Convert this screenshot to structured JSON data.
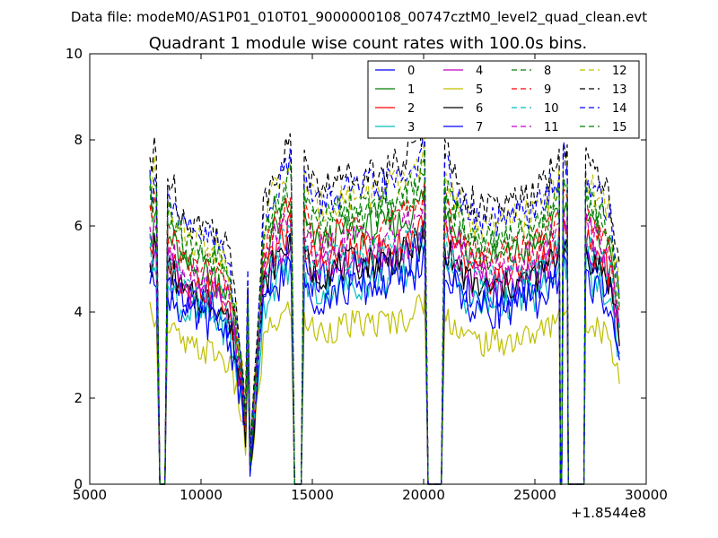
{
  "chart_data": {
    "type": "line",
    "suptitle": "Data file: modeM0/AS1P01_010T01_9000000108_00747cztM0_level2_quad_clean.evt",
    "title": "Quadrant 1 module wise count rates with 100.0s bins.",
    "xlabel": "",
    "ylabel": "",
    "x_offset_label": "+1.8544e8",
    "xlim": [
      5000,
      30000
    ],
    "ylim": [
      0,
      10
    ],
    "xticks": [
      5000,
      10000,
      15000,
      20000,
      25000,
      30000
    ],
    "yticks": [
      0,
      2,
      4,
      6,
      8,
      10
    ],
    "grid": false,
    "legend_position": "top-right",
    "legend_columns": 4,
    "x_sampling": {
      "start": 7700,
      "end": 28850,
      "step": 100
    },
    "data_segments": [
      [
        7700,
        7990
      ],
      [
        8500,
        14050
      ],
      [
        14640,
        20040
      ],
      [
        20950,
        26090
      ],
      [
        26270,
        26450
      ],
      [
        27280,
        28850
      ]
    ],
    "gap_ramps": [
      [
        7990,
        8150,
        8380,
        8500
      ],
      [
        14050,
        14200,
        14500,
        14640
      ],
      [
        20040,
        20200,
        20800,
        20950
      ],
      [
        26090,
        26150,
        26200,
        26270
      ],
      [
        26450,
        26500,
        27200,
        27280
      ]
    ],
    "profile": {
      "x": [
        7700,
        7800,
        7900,
        7990,
        8500,
        8800,
        9200,
        9600,
        10000,
        10400,
        10800,
        11200,
        11500,
        11800,
        12000,
        12100,
        12200,
        12400,
        12800,
        13200,
        13600,
        14000,
        14050,
        14640,
        14800,
        15200,
        16000,
        17000,
        18000,
        19000,
        19500,
        20000,
        20040,
        20950,
        21200,
        21600,
        22000,
        22800,
        23600,
        24400,
        25200,
        26000,
        26090,
        26270,
        26450,
        27280,
        27600,
        28000,
        28400,
        28850
      ],
      "shape": [
        1.0,
        0.95,
        1.02,
        1.0,
        0.93,
        0.9,
        0.82,
        0.8,
        0.8,
        0.79,
        0.77,
        0.72,
        0.6,
        0.42,
        0.22,
        0.65,
        0.1,
        0.3,
        0.84,
        0.94,
        0.99,
        1.04,
        1.02,
        1.0,
        0.95,
        0.9,
        0.93,
        0.95,
        0.96,
        0.98,
        1.02,
        1.08,
        1.12,
        1.03,
        0.98,
        0.93,
        0.87,
        0.84,
        0.85,
        0.87,
        0.9,
        0.98,
        1.02,
        1.05,
        1.03,
        1.0,
        0.96,
        0.92,
        0.86,
        0.6
      ]
    },
    "series": [
      {
        "name": "0",
        "color": "#0000ff",
        "dash": "solid",
        "level": 5.2,
        "jitter": 0.45
      },
      {
        "name": "1",
        "color": "#008000",
        "dash": "solid",
        "level": 6.2,
        "jitter": 0.4
      },
      {
        "name": "2",
        "color": "#ff0000",
        "dash": "solid",
        "level": 5.7,
        "jitter": 0.4
      },
      {
        "name": "3",
        "color": "#00bfbf",
        "dash": "solid",
        "level": 4.9,
        "jitter": 0.42
      },
      {
        "name": "4",
        "color": "#bf00bf",
        "dash": "solid",
        "level": 5.5,
        "jitter": 0.4
      },
      {
        "name": "5",
        "color": "#bfbf00",
        "dash": "solid",
        "level": 3.9,
        "jitter": 0.35
      },
      {
        "name": "6",
        "color": "#000000",
        "dash": "solid",
        "level": 5.4,
        "jitter": 0.4
      },
      {
        "name": "7",
        "color": "#0000ff",
        "dash": "solid",
        "level": 4.8,
        "jitter": 0.45
      },
      {
        "name": "8",
        "color": "#008000",
        "dash": "dashed",
        "level": 6.6,
        "jitter": 0.4
      },
      {
        "name": "9",
        "color": "#ff0000",
        "dash": "dashed",
        "level": 6.3,
        "jitter": 0.38
      },
      {
        "name": "10",
        "color": "#00bfbf",
        "dash": "dashed",
        "level": 5.6,
        "jitter": 0.38
      },
      {
        "name": "11",
        "color": "#bf00bf",
        "dash": "dashed",
        "level": 6.0,
        "jitter": 0.38
      },
      {
        "name": "12",
        "color": "#bfbf00",
        "dash": "dashed",
        "level": 7.1,
        "jitter": 0.42
      },
      {
        "name": "13",
        "color": "#000000",
        "dash": "dashed",
        "level": 7.6,
        "jitter": 0.4
      },
      {
        "name": "14",
        "color": "#0000ff",
        "dash": "dashed",
        "level": 7.2,
        "jitter": 0.42
      },
      {
        "name": "15",
        "color": "#008000",
        "dash": "dashed",
        "level": 6.8,
        "jitter": 0.4
      }
    ]
  }
}
